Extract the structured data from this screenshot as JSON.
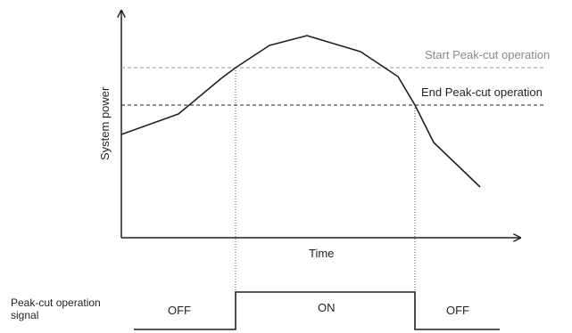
{
  "diagram": {
    "y_axis_label": "System power",
    "x_axis_label": "Time",
    "start_threshold_label": "Start Peak-cut operation",
    "end_threshold_label": "End Peak-cut operation",
    "signal_label_line1": "Peak-cut operation",
    "signal_label_line2": "signal",
    "signal_state_off_1": "OFF",
    "signal_state_on": "ON",
    "signal_state_off_2": "OFF"
  },
  "colors": {
    "line": "#231f20",
    "start_threshold": "#9a9a9a",
    "end_threshold": "#231f20",
    "text_grey": "#8a8a8a"
  }
}
